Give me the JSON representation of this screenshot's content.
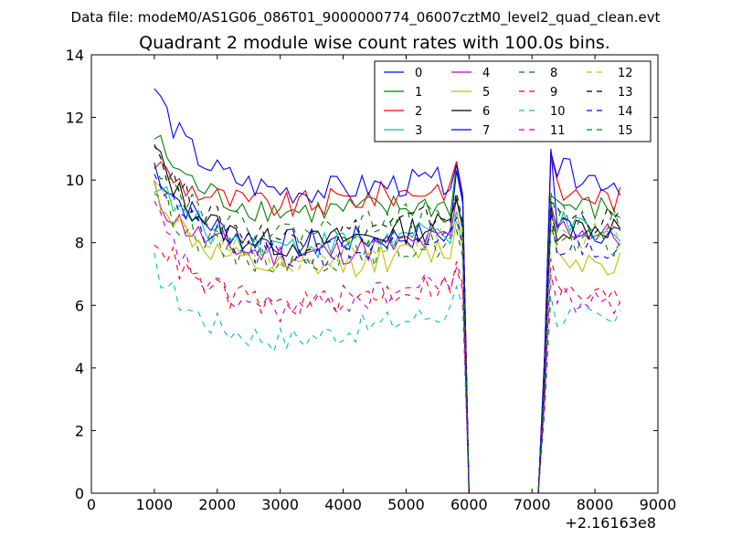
{
  "suptitle": "Data file: modeM0/AS1G06_086T01_9000000774_06007cztM0_level2_quad_clean.evt",
  "chart_data": {
    "type": "line",
    "title": "Quadrant 2 module wise count rates with 100.0s bins.",
    "xlabel": "",
    "ylabel": "",
    "x_offset_label": "+2.16163e8",
    "xlim": [
      0,
      9000
    ],
    "ylim": [
      0,
      14
    ],
    "x_ticks": [
      "0",
      "1000",
      "2000",
      "3000",
      "4000",
      "5000",
      "6000",
      "7000",
      "8000",
      "9000"
    ],
    "y_ticks": [
      "0",
      "2",
      "4",
      "6",
      "8",
      "10",
      "12",
      "14"
    ],
    "grid": false,
    "legend_position": "top-right",
    "legend_columns": 4,
    "x": [
      1000,
      1100,
      1200,
      1300,
      1400,
      1500,
      1600,
      1700,
      1800,
      1900,
      2000,
      2100,
      2200,
      2300,
      2400,
      2500,
      2600,
      2700,
      2800,
      2900,
      3000,
      3100,
      3200,
      3300,
      3400,
      3500,
      3600,
      3700,
      3800,
      3900,
      4000,
      4100,
      4200,
      4300,
      4400,
      4500,
      4600,
      4700,
      4800,
      4900,
      5000,
      5100,
      5200,
      5300,
      5400,
      5500,
      5600,
      5700,
      5800,
      5900,
      6000,
      6100,
      6200,
      6300,
      6400,
      6500,
      6600,
      6700,
      6800,
      6900,
      7000,
      7100,
      7200,
      7300,
      7400,
      7500,
      7600,
      7700,
      7800,
      7900,
      8000,
      8100,
      8200,
      8300,
      8400
    ],
    "series": [
      {
        "name": "0",
        "color": "#0000ff",
        "dash": "solid",
        "start": 10.5,
        "base": 7.9,
        "end": 8.3,
        "shape": "curve",
        "peak": 10.3,
        "bump": 11.0,
        "post": 8.6,
        "post_end": 8.3
      },
      {
        "name": "1",
        "color": "#008000",
        "dash": "solid",
        "start": 11.4,
        "base": 8.9,
        "end": 9.2,
        "shape": "curve",
        "peak": 10.5,
        "bump": 9.5,
        "post": 9.2,
        "post_end": 9.0
      },
      {
        "name": "2",
        "color": "#ff0000",
        "dash": "solid",
        "start": 10.6,
        "base": 9.1,
        "end": 9.8,
        "shape": "curve",
        "peak": 10.6,
        "bump": 10.8,
        "post": 9.6,
        "post_end": 9.4
      },
      {
        "name": "3",
        "color": "#00bfbf",
        "dash": "solid",
        "start": 10.0,
        "base": 7.8,
        "end": 8.3,
        "shape": "curve",
        "peak": 9.0,
        "bump": 9.3,
        "post": 8.6,
        "post_end": 8.0
      },
      {
        "name": "4",
        "color": "#bf00bf",
        "dash": "solid",
        "start": 9.6,
        "base": 7.5,
        "end": 8.1,
        "shape": "curve",
        "peak": 9.4,
        "bump": 9.2,
        "post": 8.5,
        "post_end": 8.2
      },
      {
        "name": "5",
        "color": "#bfbf00",
        "dash": "solid",
        "start": 9.8,
        "base": 7.0,
        "end": 7.8,
        "shape": "curve",
        "peak": 8.7,
        "bump": 8.7,
        "post": 7.5,
        "post_end": 7.4
      },
      {
        "name": "6",
        "color": "#000000",
        "dash": "solid",
        "start": 11.0,
        "base": 7.8,
        "end": 8.6,
        "shape": "curve",
        "peak": 9.4,
        "bump": 9.1,
        "post": 8.5,
        "post_end": 8.5
      },
      {
        "name": "7",
        "color": "#0000ff",
        "dash": "solid",
        "start": 13.0,
        "base": 9.5,
        "end": 10.0,
        "shape": "curve",
        "peak": 10.5,
        "bump": 10.9,
        "post": 10.3,
        "post_end": 9.9
      },
      {
        "name": "8",
        "color": "#008000",
        "dash": "dashed",
        "start": 9.8,
        "base": 7.3,
        "end": 8.0,
        "shape": "curve",
        "peak": 8.4,
        "bump": 8.5,
        "post": 7.9,
        "post_end": 7.9
      },
      {
        "name": "9",
        "color": "#ff0000",
        "dash": "dashed",
        "start": 8.3,
        "base": 5.9,
        "end": 6.7,
        "shape": "curve",
        "peak": 7.4,
        "bump": 7.5,
        "post": 6.4,
        "post_end": 6.2
      },
      {
        "name": "10",
        "color": "#00bfbf",
        "dash": "dashed",
        "start": 7.3,
        "base": 4.8,
        "end": 5.8,
        "shape": "curve",
        "peak": 6.6,
        "bump": 6.3,
        "post": 5.7,
        "post_end": 5.4
      },
      {
        "name": "11",
        "color": "#bf00bf",
        "dash": "dashed",
        "start": 9.1,
        "base": 5.7,
        "end": 6.8,
        "shape": "curve",
        "peak": 7.2,
        "bump": 7.0,
        "post": 6.2,
        "post_end": 6.0
      },
      {
        "name": "12",
        "color": "#bfbf00",
        "dash": "dashed",
        "start": 9.9,
        "base": 7.4,
        "end": 8.3,
        "shape": "curve",
        "peak": 9.0,
        "bump": 9.0,
        "post": 8.2,
        "post_end": 8.2
      },
      {
        "name": "13",
        "color": "#000000",
        "dash": "dashed",
        "start": 11.2,
        "base": 8.0,
        "end": 8.9,
        "shape": "curve",
        "peak": 9.6,
        "bump": 9.3,
        "post": 8.8,
        "post_end": 8.7
      },
      {
        "name": "14",
        "color": "#0000ff",
        "dash": "dashed",
        "start": 10.4,
        "base": 7.4,
        "end": 8.1,
        "shape": "curve",
        "peak": 8.8,
        "bump": 9.0,
        "post": 7.9,
        "post_end": 7.9
      },
      {
        "name": "15",
        "color": "#008000",
        "dash": "dashed",
        "start": 10.8,
        "base": 8.2,
        "end": 9.0,
        "shape": "curve",
        "peak": 9.5,
        "bump": 9.6,
        "post": 8.8,
        "post_end": 8.7
      }
    ]
  }
}
